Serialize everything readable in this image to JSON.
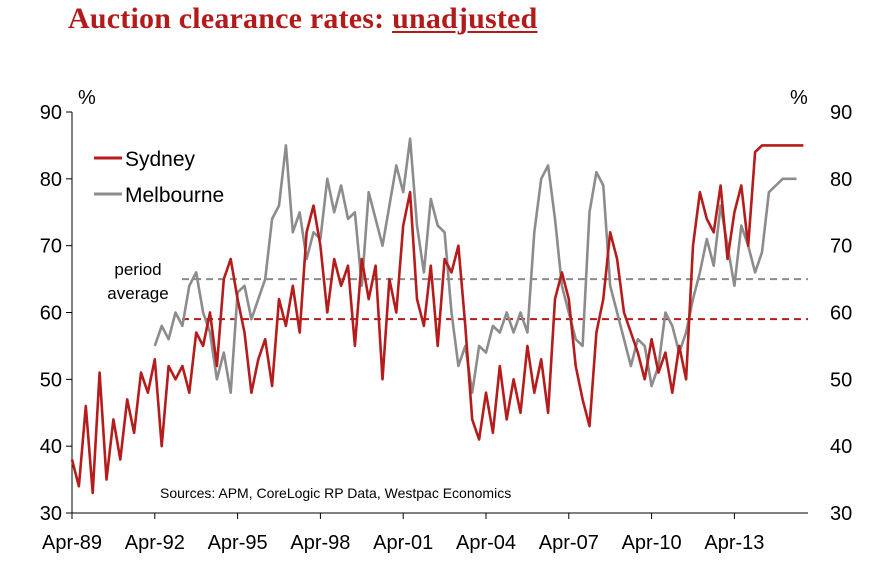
{
  "title": {
    "plain": "Auction clearance rates: ",
    "underlined": "unadjusted"
  },
  "chart_data": {
    "type": "line",
    "title": "Auction clearance rates: unadjusted",
    "ylabel_left": "%",
    "ylabel_right": "%",
    "ylim": [
      30,
      90
    ],
    "yticks": [
      30,
      40,
      50,
      60,
      70,
      80,
      90
    ],
    "x_tick_labels": [
      "Apr-89",
      "Apr-92",
      "Apr-95",
      "Apr-98",
      "Apr-01",
      "Apr-04",
      "Apr-07",
      "Apr-10",
      "Apr-13"
    ],
    "x_range": [
      "Apr-89",
      "Dec-15"
    ],
    "legend": {
      "position": "top-left",
      "entries": [
        "Sydney",
        "Melbourne"
      ]
    },
    "annotation": {
      "line1": "period",
      "line2": "average"
    },
    "source": "Sources: APM, CoreLogic RP Data, Westpac Economics",
    "colors": {
      "Sydney": "#b51c1c",
      "Melbourne": "#8c8c8c"
    },
    "averages": [
      {
        "series": "Sydney",
        "value": 59
      },
      {
        "series": "Melbourne",
        "value": 65
      }
    ],
    "series": [
      {
        "name": "Sydney",
        "x": [
          "Apr-89",
          "Jul-89",
          "Oct-89",
          "Jan-90",
          "Apr-90",
          "Jul-90",
          "Oct-90",
          "Jan-91",
          "Apr-91",
          "Jul-91",
          "Oct-91",
          "Jan-92",
          "Apr-92",
          "Jul-92",
          "Oct-92",
          "Jan-93",
          "Apr-93",
          "Jul-93",
          "Oct-93",
          "Jan-94",
          "Apr-94",
          "Jul-94",
          "Oct-94",
          "Jan-95",
          "Apr-95",
          "Jul-95",
          "Oct-95",
          "Jan-96",
          "Apr-96",
          "Jul-96",
          "Oct-96",
          "Jan-97",
          "Apr-97",
          "Jul-97",
          "Oct-97",
          "Jan-98",
          "Apr-98",
          "Jul-98",
          "Oct-98",
          "Jan-99",
          "Apr-99",
          "Jul-99",
          "Oct-99",
          "Jan-00",
          "Apr-00",
          "Jul-00",
          "Oct-00",
          "Jan-01",
          "Apr-01",
          "Jul-01",
          "Oct-01",
          "Jan-02",
          "Apr-02",
          "Jul-02",
          "Oct-02",
          "Jan-03",
          "Apr-03",
          "Jul-03",
          "Oct-03",
          "Jan-04",
          "Apr-04",
          "Jul-04",
          "Oct-04",
          "Jan-05",
          "Apr-05",
          "Jul-05",
          "Oct-05",
          "Jan-06",
          "Apr-06",
          "Jul-06",
          "Oct-06",
          "Jan-07",
          "Apr-07",
          "Jul-07",
          "Oct-07",
          "Jan-08",
          "Apr-08",
          "Jul-08",
          "Oct-08",
          "Jan-09",
          "Apr-09",
          "Jul-09",
          "Oct-09",
          "Jan-10",
          "Apr-10",
          "Jul-10",
          "Oct-10",
          "Jan-11",
          "Apr-11",
          "Jul-11",
          "Oct-11",
          "Jan-12",
          "Apr-12",
          "Jul-12",
          "Oct-12",
          "Jan-13",
          "Apr-13",
          "Jul-13",
          "Oct-13",
          "Jan-14",
          "Apr-14",
          "Jul-14",
          "Oct-14",
          "Jan-15",
          "Apr-15",
          "Jul-15",
          "Oct-15"
        ],
        "values": [
          38,
          34,
          46,
          33,
          51,
          35,
          44,
          38,
          47,
          42,
          51,
          48,
          53,
          40,
          52,
          50,
          52,
          48,
          57,
          55,
          60,
          52,
          65,
          68,
          62,
          57,
          48,
          53,
          56,
          49,
          62,
          58,
          64,
          57,
          72,
          76,
          70,
          60,
          68,
          64,
          67,
          55,
          68,
          62,
          67,
          50,
          65,
          60,
          73,
          78,
          62,
          58,
          67,
          55,
          68,
          66,
          70,
          58,
          44,
          41,
          48,
          42,
          52,
          44,
          50,
          45,
          55,
          48,
          53,
          45,
          62,
          66,
          62,
          52,
          47,
          43,
          57,
          62,
          72,
          68,
          60,
          57,
          54,
          50,
          56,
          51,
          54,
          48,
          55,
          50,
          70,
          78,
          74,
          72,
          79,
          68,
          75,
          79,
          70,
          84,
          85,
          85,
          85,
          85,
          85,
          85,
          85
        ],
        "visible_until": "Jul-15"
      },
      {
        "name": "Melbourne",
        "x": [
          "Apr-92",
          "Jul-92",
          "Oct-92",
          "Jan-93",
          "Apr-93",
          "Jul-93",
          "Oct-93",
          "Jan-94",
          "Apr-94",
          "Jul-94",
          "Oct-94",
          "Jan-95",
          "Apr-95",
          "Jul-95",
          "Oct-95",
          "Jan-96",
          "Apr-96",
          "Jul-96",
          "Oct-96",
          "Jan-97",
          "Apr-97",
          "Jul-97",
          "Oct-97",
          "Jan-98",
          "Apr-98",
          "Jul-98",
          "Oct-98",
          "Jan-99",
          "Apr-99",
          "Jul-99",
          "Oct-99",
          "Jan-00",
          "Apr-00",
          "Jul-00",
          "Oct-00",
          "Jan-01",
          "Apr-01",
          "Jul-01",
          "Oct-01",
          "Jan-02",
          "Apr-02",
          "Jul-02",
          "Oct-02",
          "Jan-03",
          "Apr-03",
          "Jul-03",
          "Oct-03",
          "Jan-04",
          "Apr-04",
          "Jul-04",
          "Oct-04",
          "Jan-05",
          "Apr-05",
          "Jul-05",
          "Oct-05",
          "Jan-06",
          "Apr-06",
          "Jul-06",
          "Oct-06",
          "Jan-07",
          "Apr-07",
          "Jul-07",
          "Oct-07",
          "Jan-08",
          "Apr-08",
          "Jul-08",
          "Oct-08",
          "Jan-09",
          "Apr-09",
          "Jul-09",
          "Oct-09",
          "Jan-10",
          "Apr-10",
          "Jul-10",
          "Oct-10",
          "Jan-11",
          "Apr-11",
          "Jul-11",
          "Oct-11",
          "Jan-12",
          "Apr-12",
          "Jul-12",
          "Oct-12",
          "Jan-13",
          "Apr-13",
          "Jul-13",
          "Oct-13",
          "Jan-14",
          "Apr-14",
          "Jul-14",
          "Oct-14",
          "Jan-15",
          "Apr-15",
          "Jul-15"
        ],
        "values": [
          55,
          58,
          56,
          60,
          58,
          64,
          66,
          60,
          57,
          50,
          54,
          48,
          63,
          64,
          59,
          62,
          65,
          74,
          76,
          85,
          72,
          75,
          68,
          72,
          71,
          80,
          75,
          79,
          74,
          75,
          64,
          78,
          74,
          70,
          76,
          82,
          78,
          86,
          73,
          66,
          77,
          73,
          72,
          60,
          52,
          55,
          48,
          55,
          54,
          58,
          57,
          60,
          57,
          60,
          57,
          72,
          80,
          82,
          74,
          64,
          60,
          56,
          55,
          75,
          81,
          79,
          64,
          60,
          56,
          52,
          56,
          55,
          49,
          52,
          60,
          58,
          54,
          57,
          62,
          66,
          71,
          67,
          76,
          70,
          64,
          73,
          70,
          66,
          69,
          78,
          79,
          80,
          80,
          80
        ],
        "visible_until": "Jul-15"
      }
    ]
  }
}
